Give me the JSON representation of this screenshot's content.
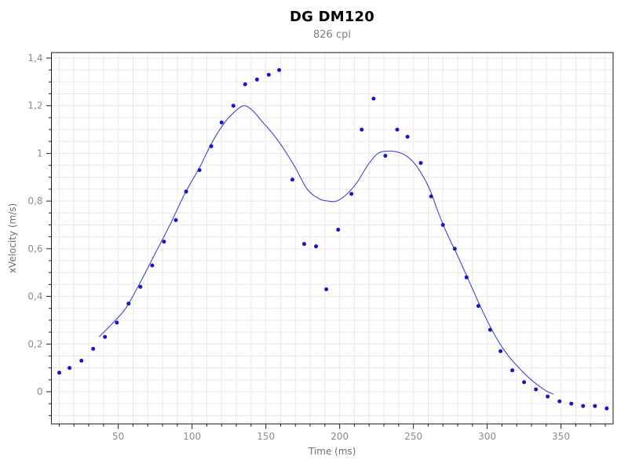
{
  "chart_data": {
    "type": "scatter",
    "title": "DG DM120",
    "subtitle": "826 cpi",
    "xlabel": "Time (ms)",
    "ylabel": "xVelocity (m/s)",
    "xlim": [
      4.7,
      385.3
    ],
    "ylim": [
      -0.135,
      1.423
    ],
    "x_major_ticks": [
      50,
      100,
      150,
      200,
      250,
      300,
      350
    ],
    "x_minor_step": 10,
    "y_major_ticks": [
      0,
      0.2,
      0.4,
      0.6,
      0.8,
      1,
      1.2,
      1.4
    ],
    "y_minor_step": 0.05,
    "decimal_separator": ",",
    "grid": true,
    "legend": "none",
    "colors": {
      "title": "#000000",
      "subtitle": "#7f7f7f",
      "points": "#1616cc",
      "line": "#4444d4",
      "grid": "#e9e9e9",
      "axis": "#1a1a1a",
      "tick_labels": "#8c8c8c",
      "axis_labels": "#6e6e6e"
    },
    "series": [
      {
        "name": "velocity-samples",
        "style": "points",
        "points": [
          [
            10,
            0.08
          ],
          [
            17,
            0.1
          ],
          [
            25,
            0.13
          ],
          [
            33,
            0.18
          ],
          [
            41,
            0.23
          ],
          [
            49,
            0.29
          ],
          [
            57,
            0.37
          ],
          [
            65,
            0.44
          ],
          [
            73,
            0.53
          ],
          [
            81,
            0.63
          ],
          [
            89,
            0.72
          ],
          [
            96,
            0.84
          ],
          [
            105,
            0.93
          ],
          [
            113,
            1.03
          ],
          [
            120,
            1.13
          ],
          [
            128,
            1.2
          ],
          [
            136,
            1.29
          ],
          [
            144,
            1.31
          ],
          [
            152,
            1.33
          ],
          [
            159,
            1.35
          ],
          [
            168,
            0.89
          ],
          [
            176,
            0.62
          ],
          [
            184,
            0.61
          ],
          [
            191,
            0.43
          ],
          [
            199,
            0.68
          ],
          [
            208,
            0.83
          ],
          [
            215,
            1.1
          ],
          [
            223,
            1.23
          ],
          [
            231,
            0.99
          ],
          [
            239,
            1.1
          ],
          [
            246,
            1.07
          ],
          [
            255,
            0.96
          ],
          [
            262,
            0.82
          ],
          [
            270,
            0.7
          ],
          [
            278,
            0.6
          ],
          [
            286,
            0.48
          ],
          [
            294,
            0.36
          ],
          [
            302,
            0.26
          ],
          [
            309,
            0.17
          ],
          [
            317,
            0.09
          ],
          [
            325,
            0.04
          ],
          [
            333,
            0.01
          ],
          [
            341,
            -0.02
          ],
          [
            349,
            -0.04
          ],
          [
            357,
            -0.05
          ],
          [
            365,
            -0.06
          ],
          [
            373,
            -0.06
          ],
          [
            381,
            -0.07
          ]
        ]
      },
      {
        "name": "smoothed-fit",
        "style": "line",
        "points": [
          [
            37,
            0.23
          ],
          [
            45,
            0.28
          ],
          [
            55,
            0.35
          ],
          [
            65,
            0.46
          ],
          [
            75,
            0.58
          ],
          [
            85,
            0.7
          ],
          [
            95,
            0.83
          ],
          [
            105,
            0.94
          ],
          [
            113,
            1.04
          ],
          [
            121,
            1.12
          ],
          [
            128,
            1.17
          ],
          [
            135,
            1.2
          ],
          [
            141,
            1.18
          ],
          [
            148,
            1.13
          ],
          [
            155,
            1.08
          ],
          [
            162,
            1.02
          ],
          [
            170,
            0.94
          ],
          [
            178,
            0.85
          ],
          [
            186,
            0.81
          ],
          [
            192,
            0.8
          ],
          [
            198,
            0.8
          ],
          [
            205,
            0.83
          ],
          [
            212,
            0.88
          ],
          [
            219,
            0.95
          ],
          [
            226,
            1.0
          ],
          [
            234,
            1.01
          ],
          [
            242,
            1.0
          ],
          [
            249,
            0.97
          ],
          [
            255,
            0.92
          ],
          [
            261,
            0.85
          ],
          [
            267,
            0.75
          ],
          [
            273,
            0.66
          ],
          [
            280,
            0.57
          ],
          [
            288,
            0.46
          ],
          [
            296,
            0.35
          ],
          [
            304,
            0.25
          ],
          [
            312,
            0.17
          ],
          [
            320,
            0.11
          ],
          [
            328,
            0.06
          ],
          [
            336,
            0.02
          ],
          [
            341,
            0.0
          ],
          [
            345,
            -0.01
          ]
        ]
      }
    ]
  }
}
